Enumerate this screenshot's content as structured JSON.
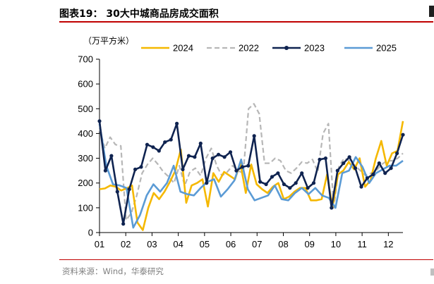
{
  "figure": {
    "title": "图表19： 30大中城商品房成交面积",
    "source": "资料来源：Wind，华泰研究"
  },
  "colors": {
    "s2024": "#f5b800",
    "s2022": "#b7b7b7",
    "s2023": "#0f2350",
    "s2025": "#5b9bd5",
    "rule": "#c00000",
    "axis": "#000000",
    "text": "#000000",
    "source_text": "#7f7f7f"
  },
  "chart_data": {
    "type": "line",
    "title": "30大中城商品房成交面积",
    "unit_label": "（万平方米）",
    "xlabel": "",
    "ylabel": "万平方米",
    "ylim": [
      0,
      700
    ],
    "yticks": [
      0,
      100,
      200,
      300,
      400,
      500,
      600,
      700
    ],
    "xlim": [
      0,
      52
    ],
    "x_tick_labels": [
      "01",
      "02",
      "03",
      "04",
      "05",
      "06",
      "07",
      "08",
      "09",
      "10",
      "11",
      "12"
    ],
    "x_tick_weeks": [
      0,
      4.5,
      9,
      13.5,
      18,
      22.5,
      27,
      31.5,
      36,
      40.5,
      45,
      49.5
    ],
    "x_unit": "week of year (approx.)",
    "legend_position": "top",
    "legend_order": [
      "2024",
      "2022",
      "2023",
      "2025"
    ],
    "series": [
      {
        "name": "2022",
        "style": "dashed",
        "values": [
          420,
          340,
          385,
          355,
          350,
          50,
          80,
          150,
          240,
          275,
          300,
          275,
          245,
          225,
          200,
          270,
          190,
          245,
          260,
          230,
          300,
          340,
          270,
          230,
          245,
          270,
          250,
          240,
          500,
          520,
          480,
          280,
          280,
          300,
          290,
          250,
          240,
          260,
          285,
          280,
          295,
          245,
          400,
          440,
          100,
          270,
          300,
          290,
          270,
          250,
          230,
          240,
          250,
          275,
          290,
          290,
          300,
          320
        ]
      },
      {
        "name": "2024",
        "style": "solid",
        "values": [
          175,
          178,
          190,
          185,
          170,
          178,
          190,
          40,
          10,
          100,
          160,
          135,
          165,
          205,
          250,
          335,
          120,
          190,
          200,
          215,
          105,
          240,
          205,
          245,
          230,
          215,
          280,
          160,
          275,
          195,
          175,
          160,
          185,
          200,
          135,
          145,
          165,
          180,
          180,
          130,
          130,
          135,
          235,
          100,
          235,
          250,
          285,
          255,
          300,
          185,
          210,
          300,
          370,
          270,
          320,
          330,
          450
        ]
      },
      {
        "name": "2023",
        "style": "solid_markers",
        "values": [
          450,
          250,
          310,
          165,
          35,
          175,
          255,
          265,
          355,
          345,
          330,
          365,
          375,
          440,
          255,
          310,
          305,
          360,
          200,
          300,
          315,
          305,
          325,
          250,
          265,
          270,
          390,
          205,
          195,
          225,
          240,
          195,
          180,
          200,
          240,
          180,
          200,
          295,
          300,
          100,
          250,
          280,
          305,
          260,
          185,
          220,
          235,
          280,
          240,
          260,
          320,
          395
        ]
      },
      {
        "name": "2025",
        "style": "solid",
        "values": [
          440,
          270,
          195,
          190,
          180,
          20,
          70,
          150,
          195,
          165,
          200,
          270,
          165,
          155,
          150,
          180,
          205,
          215,
          145,
          175,
          210,
          295,
          175,
          130,
          140,
          150,
          190,
          135,
          130,
          160,
          180,
          155,
          180,
          150,
          140,
          100,
          240,
          250,
          305,
          265,
          200,
          240,
          255,
          270,
          270,
          290
        ]
      }
    ],
    "series_x_spacing": "each series spans weeks 0..52 evenly"
  }
}
